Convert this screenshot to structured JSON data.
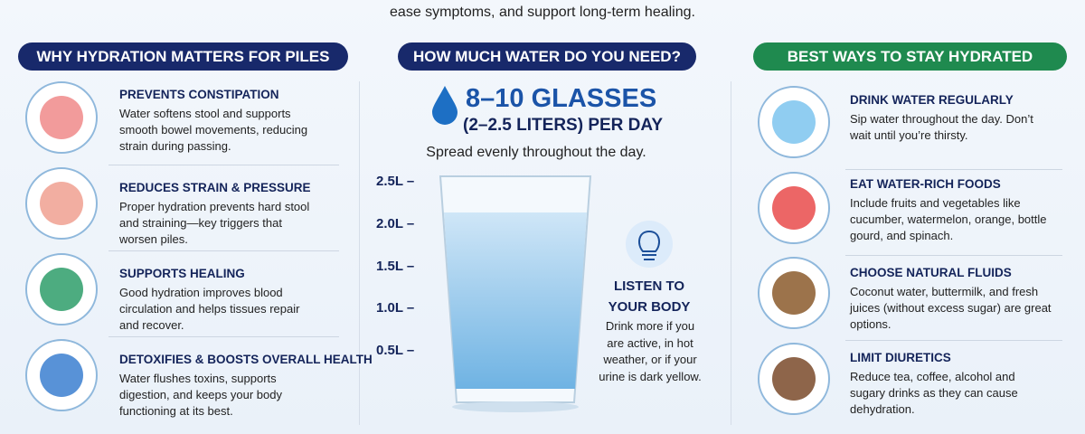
{
  "header": {
    "subtitle": "ease symptoms, and support long-term healing."
  },
  "left": {
    "title": "WHY HYDRATION MATTERS FOR PILES",
    "items": [
      {
        "title": "PREVENTS CONSTIPATION",
        "text": "Water softens stool and supports smooth bowel movements, reducing strain during passing."
      },
      {
        "title": "REDUCES STRAIN & PRESSURE",
        "text": "Proper hydration prevents hard stool and straining—key triggers that worsen piles."
      },
      {
        "title": "SUPPORTS HEALING",
        "text": "Good hydration improves blood circulation and helps tissues repair and recover."
      },
      {
        "title": "DETOXIFIES & BOOSTS OVERALL HEALTH",
        "text": "Water flushes toxins, supports digestion, and keeps your body functioning at its best."
      }
    ]
  },
  "middle": {
    "title": "HOW MUCH WATER DO YOU NEED?",
    "amount": "8–10 GLASSES",
    "liters": "(2–2.5 LITERS) PER DAY",
    "note": "Spread evenly throughout the day.",
    "scale": [
      "2.5L –",
      "2.0L –",
      "1.5L –",
      "1.0L –",
      "0.5L –"
    ],
    "tip": {
      "title": "LISTEN TO YOUR BODY",
      "text": "Drink more if you are active, in hot weather, or if your urine is dark yellow."
    }
  },
  "right": {
    "title": "BEST WAYS TO STAY HYDRATED",
    "items": [
      {
        "title": "DRINK WATER REGULARLY",
        "text": "Sip water throughout the day. Don’t wait until you’re thirsty."
      },
      {
        "title": "EAT WATER-RICH FOODS",
        "text": "Include fruits and vegetables like cucumber, watermelon, orange, bottle gourd, and spinach."
      },
      {
        "title": "CHOOSE NATURAL FLUIDS",
        "text": "Coconut water, buttermilk, and fresh juices (without excess sugar) are great options."
      },
      {
        "title": "LIMIT DIURETICS",
        "text": "Reduce tea, coffee, alcohol and sugary drinks as they can cause dehydration."
      }
    ]
  }
}
